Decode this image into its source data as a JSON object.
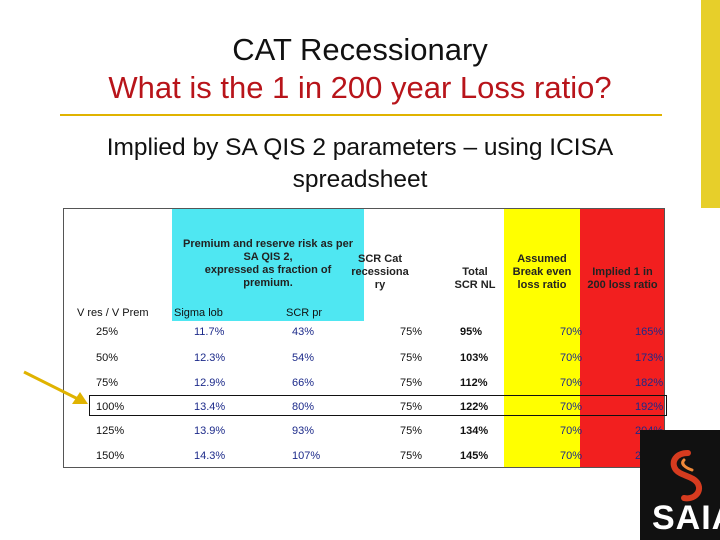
{
  "title_line1": "CAT Recessionary",
  "title_line2": "What is the 1 in 200 year Loss ratio?",
  "subtitle_line1": "Implied by SA QIS 2 parameters – using ICISA",
  "subtitle_line2": "spreadsheet",
  "headers": {
    "premium_reserve": [
      "Premium and reserve risk as per",
      "SA QIS 2,",
      "expressed as fraction of",
      "premium."
    ],
    "scr_cat": [
      "SCR Cat",
      "recessiona",
      "ry"
    ],
    "total_scr": [
      "Total",
      "SCR NL"
    ],
    "assumed_breakeven": [
      "Assumed",
      "Break even",
      "loss ratio"
    ],
    "implied": [
      "Implied 1 in",
      "200 loss ratio"
    ],
    "vres_vprem": "V res / V Prem",
    "sigma_lob": "Sigma lob",
    "scr_pr": "SCR pr"
  },
  "rows": [
    {
      "vres": "25%",
      "sigma": "11.7%",
      "scr_pr": "43%",
      "scr_cat": "75%",
      "total": "95%",
      "breakeven": "70%",
      "implied": "165%"
    },
    {
      "vres": "50%",
      "sigma": "12.3%",
      "scr_pr": "54%",
      "scr_cat": "75%",
      "total": "103%",
      "breakeven": "70%",
      "implied": "173%"
    },
    {
      "vres": "75%",
      "sigma": "12.9%",
      "scr_pr": "66%",
      "scr_cat": "75%",
      "total": "112%",
      "breakeven": "70%",
      "implied": "182%"
    },
    {
      "vres": "100%",
      "sigma": "13.4%",
      "scr_pr": "80%",
      "scr_cat": "75%",
      "total": "122%",
      "breakeven": "70%",
      "implied": "192%"
    },
    {
      "vres": "125%",
      "sigma": "13.9%",
      "scr_pr": "93%",
      "scr_cat": "75%",
      "total": "134%",
      "breakeven": "70%",
      "implied": "204%"
    },
    {
      "vres": "150%",
      "sigma": "14.3%",
      "scr_pr": "107%",
      "scr_cat": "75%",
      "total": "145%",
      "breakeven": "70%",
      "implied": "215%"
    }
  ],
  "logo_text": "SAIA",
  "colors": {
    "title_red": "#b8141a",
    "cyan": "#4fe7f2",
    "yellow": "#ffff00",
    "red": "#f21f1f",
    "value_blue": "#1c2a8a",
    "accent_gold": "#e0b300"
  }
}
